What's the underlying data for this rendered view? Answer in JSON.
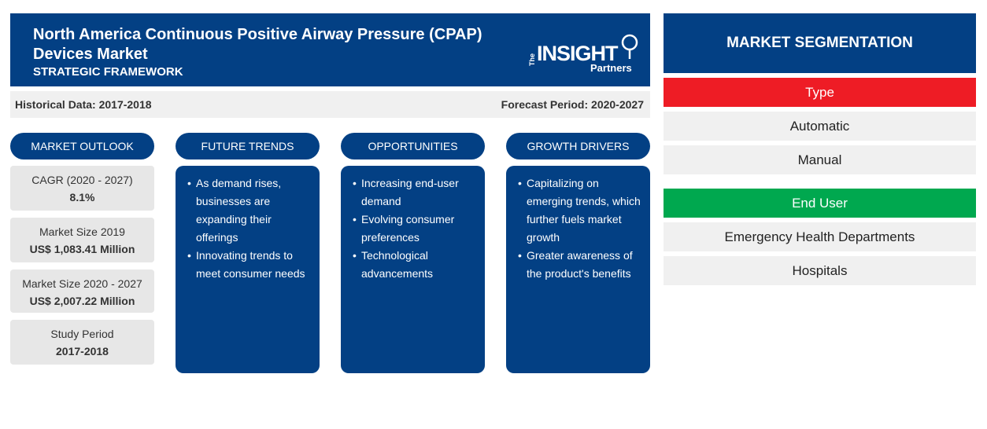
{
  "header": {
    "title": "North America Continuous Positive Airway Pressure (CPAP) Devices Market",
    "subtitle": "STRATEGIC FRAMEWORK",
    "logo": {
      "the": "The",
      "insight": "INSIGHT",
      "partners": "Partners"
    }
  },
  "period": {
    "historical": "Historical Data: 2017-2018",
    "forecast": "Forecast Period: 2020-2027"
  },
  "columns": {
    "outlook": "MARKET OUTLOOK",
    "trends": "FUTURE TRENDS",
    "opportunities": "OPPORTUNITIES",
    "drivers": "GROWTH DRIVERS"
  },
  "outlook": [
    {
      "label": "CAGR (2020 - 2027)",
      "value": "8.1%"
    },
    {
      "label": "Market Size 2019",
      "value": "US$ 1,083.41 Million"
    },
    {
      "label": "Market Size 2020 - 2027",
      "value": "US$ 2,007.22 Million"
    },
    {
      "label": "Study Period",
      "value": "2017-2018"
    }
  ],
  "trends": [
    "As demand rises, businesses are expanding their offerings",
    "Innovating trends to meet consumer needs"
  ],
  "opportunities": [
    "Increasing end-user demand",
    "Evolving consumer preferences",
    "Technological advancements"
  ],
  "drivers": [
    "Capitalizing on emerging trends, which further fuels market growth",
    "Greater awareness of the product's benefits"
  ],
  "segmentation": {
    "title": "MARKET SEGMENTATION",
    "type_label": "Type",
    "type_items": [
      "Automatic",
      "Manual"
    ],
    "enduser_label": "End User",
    "enduser_items": [
      "Emergency Health Departments",
      "Hospitals"
    ]
  },
  "colors": {
    "navy": "#034084",
    "type_red": "#ee1c25",
    "enduser_green": "#00a84f",
    "light_gray": "#f0f0f0"
  }
}
